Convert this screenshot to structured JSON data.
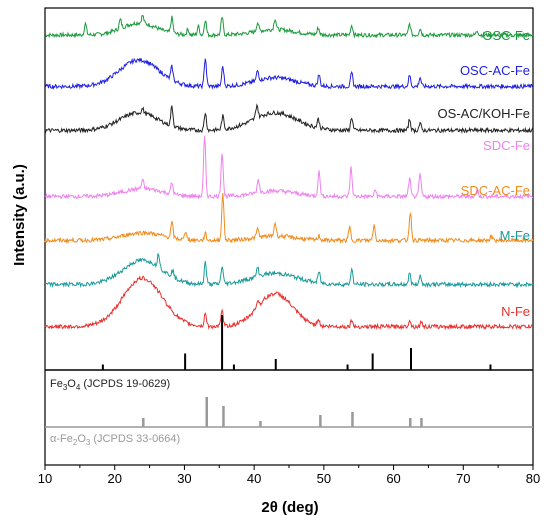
{
  "chart_data": {
    "type": "line",
    "xlabel": "2θ (deg)",
    "ylabel": "Intensity (a.u.)",
    "xlim": [
      10,
      80
    ],
    "xticks": [
      "10",
      "20",
      "30",
      "40",
      "50",
      "60",
      "70",
      "80"
    ],
    "grid": false,
    "series": [
      {
        "name": "OSC-Fe",
        "color": "#1a9a3c",
        "baseline": 0.5,
        "broad": [
          [
            23.5,
            0.55,
            3.5
          ],
          [
            43,
            0.25,
            4
          ]
        ],
        "peaks": [
          [
            15.8,
            0.5
          ],
          [
            20.8,
            0.4
          ],
          [
            24.0,
            0.35
          ],
          [
            28.2,
            0.7
          ],
          [
            30.5,
            0.25
          ],
          [
            32.0,
            0.4
          ],
          [
            33.0,
            0.7
          ],
          [
            35.4,
            0.8
          ],
          [
            40.5,
            0.4
          ],
          [
            43.0,
            0.5
          ],
          [
            49.2,
            0.3
          ],
          [
            54.0,
            0.45
          ],
          [
            62.3,
            0.5
          ],
          [
            63.8,
            0.3
          ],
          [
            72.0,
            0.2
          ]
        ]
      },
      {
        "name": "OSC-AC-Fe",
        "color": "#1f1fe0",
        "baseline": 0.3,
        "broad": [
          [
            23.5,
            1.2,
            4
          ],
          [
            43,
            0.4,
            4
          ]
        ],
        "peaks": [
          [
            28.2,
            0.6
          ],
          [
            33.0,
            1.3
          ],
          [
            35.5,
            0.9
          ],
          [
            40.5,
            0.45
          ],
          [
            49.3,
            0.5
          ],
          [
            54.0,
            0.6
          ],
          [
            62.3,
            0.5
          ],
          [
            63.8,
            0.4
          ]
        ]
      },
      {
        "name": "OS-AC/KOH-Fe",
        "color": "#222222",
        "baseline": 0.3,
        "broad": [
          [
            23.5,
            0.8,
            4
          ],
          [
            43,
            0.8,
            4.5
          ]
        ],
        "peaks": [
          [
            24.0,
            0.2
          ],
          [
            28.2,
            0.9
          ],
          [
            33.0,
            0.8
          ],
          [
            35.5,
            0.6
          ],
          [
            40.4,
            0.6
          ],
          [
            49.2,
            0.4
          ],
          [
            54.0,
            0.6
          ],
          [
            62.3,
            0.5
          ],
          [
            63.8,
            0.3
          ]
        ]
      },
      {
        "name": "SDC-Fe",
        "color": "#ee82ee",
        "baseline": 0.3,
        "broad": [
          [
            24,
            0.35,
            4
          ],
          [
            43,
            0.25,
            4
          ]
        ],
        "peaks": [
          [
            24.0,
            0.4
          ],
          [
            28.2,
            0.5
          ],
          [
            32.9,
            2.7
          ],
          [
            35.4,
            2.0
          ],
          [
            40.6,
            0.6
          ],
          [
            49.3,
            1.1
          ],
          [
            53.9,
            1.3
          ],
          [
            57.4,
            0.3
          ],
          [
            62.3,
            0.8
          ],
          [
            63.8,
            1.0
          ],
          [
            72.0,
            0.3
          ]
        ]
      },
      {
        "name": "SDC-AC-Fe",
        "color": "#f08c1e",
        "baseline": 0.3,
        "broad": [
          [
            24,
            0.35,
            4
          ],
          [
            43,
            0.2,
            4
          ]
        ],
        "peaks": [
          [
            28.2,
            0.7
          ],
          [
            30.2,
            0.4
          ],
          [
            33.0,
            0.3
          ],
          [
            35.5,
            2.1
          ],
          [
            40.5,
            0.4
          ],
          [
            43.0,
            0.6
          ],
          [
            49.3,
            0.2
          ],
          [
            53.7,
            0.6
          ],
          [
            57.2,
            0.7
          ],
          [
            62.4,
            1.3
          ],
          [
            74.0,
            0.2
          ]
        ]
      },
      {
        "name": "M-Fe",
        "color": "#1a9a9a",
        "baseline": 0.3,
        "broad": [
          [
            24,
            1.1,
            4
          ],
          [
            43,
            0.5,
            4.5
          ]
        ],
        "peaks": [
          [
            26.3,
            0.6
          ],
          [
            28.3,
            0.3
          ],
          [
            33.0,
            1.0
          ],
          [
            35.4,
            0.8
          ],
          [
            40.5,
            0.4
          ],
          [
            49.3,
            0.5
          ],
          [
            54.0,
            0.7
          ],
          [
            62.3,
            0.5
          ],
          [
            63.8,
            0.4
          ]
        ]
      },
      {
        "name": "N-Fe",
        "color": "#e83030",
        "baseline": 0.2,
        "broad": [
          [
            24,
            2.2,
            4
          ],
          [
            43,
            1.5,
            3.5
          ]
        ],
        "peaks": [
          [
            33.0,
            0.6
          ],
          [
            35.4,
            0.7
          ],
          [
            40.5,
            0.3
          ],
          [
            49.2,
            0.3
          ],
          [
            54.0,
            0.3
          ],
          [
            62.3,
            0.3
          ],
          [
            64.0,
            0.2
          ]
        ]
      }
    ],
    "references": [
      {
        "name": "Fe3O4 (JCPDS 19-0629)",
        "base": "Fe",
        "sub1": "3",
        "mid": "O",
        "sub2": "4",
        "tail": " (JCPDS 19-0629)",
        "color": "#000000",
        "peaks": [
          [
            18.3,
            0.1
          ],
          [
            30.1,
            0.3
          ],
          [
            35.4,
            1.0
          ],
          [
            37.1,
            0.1
          ],
          [
            43.1,
            0.2
          ],
          [
            53.4,
            0.1
          ],
          [
            57.0,
            0.3
          ],
          [
            62.5,
            0.4
          ],
          [
            73.9,
            0.1
          ]
        ]
      },
      {
        "name": "α-Fe2O3 (JCPDS 33-0664)",
        "base": "α-Fe",
        "sub1": "2",
        "mid": "O",
        "sub2": "3",
        "tail": " (JCPDS 33-0664)",
        "color": "#999999",
        "peaks": [
          [
            24.1,
            0.3
          ],
          [
            33.2,
            1.0
          ],
          [
            35.6,
            0.7
          ],
          [
            40.9,
            0.2
          ],
          [
            49.5,
            0.4
          ],
          [
            54.1,
            0.5
          ],
          [
            62.4,
            0.3
          ],
          [
            64.0,
            0.3
          ]
        ]
      }
    ]
  }
}
